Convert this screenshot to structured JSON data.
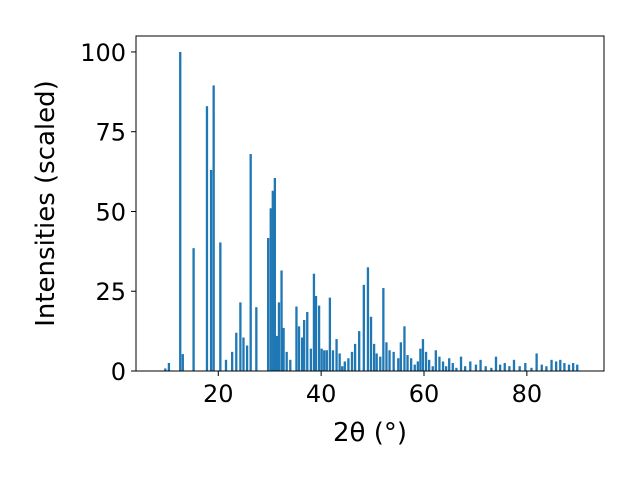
{
  "chart_data": {
    "type": "bar",
    "xlabel": "2θ (°)",
    "ylabel": "Intensities (scaled)",
    "xlim": [
      4,
      95
    ],
    "ylim": [
      0,
      105
    ],
    "x_ticks": [
      20,
      40,
      60,
      80
    ],
    "y_ticks": [
      0,
      25,
      50,
      75,
      100
    ],
    "grid": false,
    "bar_color": "#1f77b4",
    "bar_width": 0.45,
    "x": [
      9.7,
      10.4,
      12.6,
      13.1,
      15.2,
      17.8,
      18.6,
      19.1,
      20.4,
      21.5,
      22.7,
      23.5,
      24.3,
      24.9,
      25.6,
      26.3,
      27.4,
      29.7,
      30.2,
      30.6,
      31.0,
      31.4,
      31.8,
      32.3,
      32.7,
      33.3,
      34.0,
      35.2,
      35.7,
      36.3,
      36.7,
      37.3,
      38.0,
      38.6,
      39.0,
      39.6,
      40.1,
      40.6,
      41.1,
      41.7,
      42.3,
      43.0,
      43.6,
      44.1,
      44.6,
      45.3,
      46.0,
      46.6,
      47.4,
      48.3,
      49.1,
      49.7,
      50.3,
      50.8,
      51.5,
      52.1,
      52.7,
      53.3,
      54.1,
      55.0,
      55.5,
      56.2,
      56.8,
      57.5,
      58.2,
      58.8,
      59.3,
      59.8,
      60.4,
      61.0,
      61.7,
      62.3,
      63.0,
      63.7,
      64.3,
      64.9,
      65.6,
      66.3,
      67.2,
      68.0,
      69.0,
      70.1,
      71.0,
      72.0,
      73.1,
      74.0,
      74.8,
      75.7,
      76.6,
      77.5,
      78.6,
      79.7,
      80.9,
      81.9,
      82.9,
      83.8,
      84.8,
      85.7,
      86.5,
      87.3,
      88.2,
      89.0,
      89.8
    ],
    "values": [
      0.8,
      2.5,
      100.0,
      5.3,
      38.5,
      83.0,
      63.0,
      89.5,
      40.3,
      3.5,
      6.0,
      12.0,
      21.5,
      10.5,
      8.0,
      68.0,
      20.0,
      41.7,
      51.0,
      56.5,
      60.5,
      11.0,
      21.5,
      31.5,
      13.5,
      6.0,
      3.5,
      20.2,
      14.0,
      10.5,
      16.0,
      18.5,
      7.0,
      30.5,
      23.5,
      20.5,
      7.0,
      6.5,
      6.5,
      23.0,
      6.5,
      10.0,
      5.5,
      1.5,
      3.0,
      4.0,
      6.0,
      8.5,
      12.5,
      27.0,
      32.5,
      17.0,
      8.5,
      5.5,
      4.5,
      26.0,
      9.0,
      6.5,
      6.0,
      4.0,
      9.0,
      14.0,
      5.0,
      4.0,
      2.0,
      3.0,
      7.0,
      10.0,
      6.0,
      3.5,
      1.5,
      6.5,
      4.5,
      3.0,
      1.5,
      4.0,
      2.5,
      1.0,
      4.5,
      1.5,
      3.0,
      2.0,
      3.5,
      1.5,
      1.0,
      4.5,
      2.0,
      2.5,
      1.5,
      3.5,
      1.5,
      2.5,
      1.0,
      5.5,
      2.0,
      1.5,
      3.5,
      3.0,
      3.5,
      2.5,
      2.0,
      2.5,
      2.0
    ]
  }
}
